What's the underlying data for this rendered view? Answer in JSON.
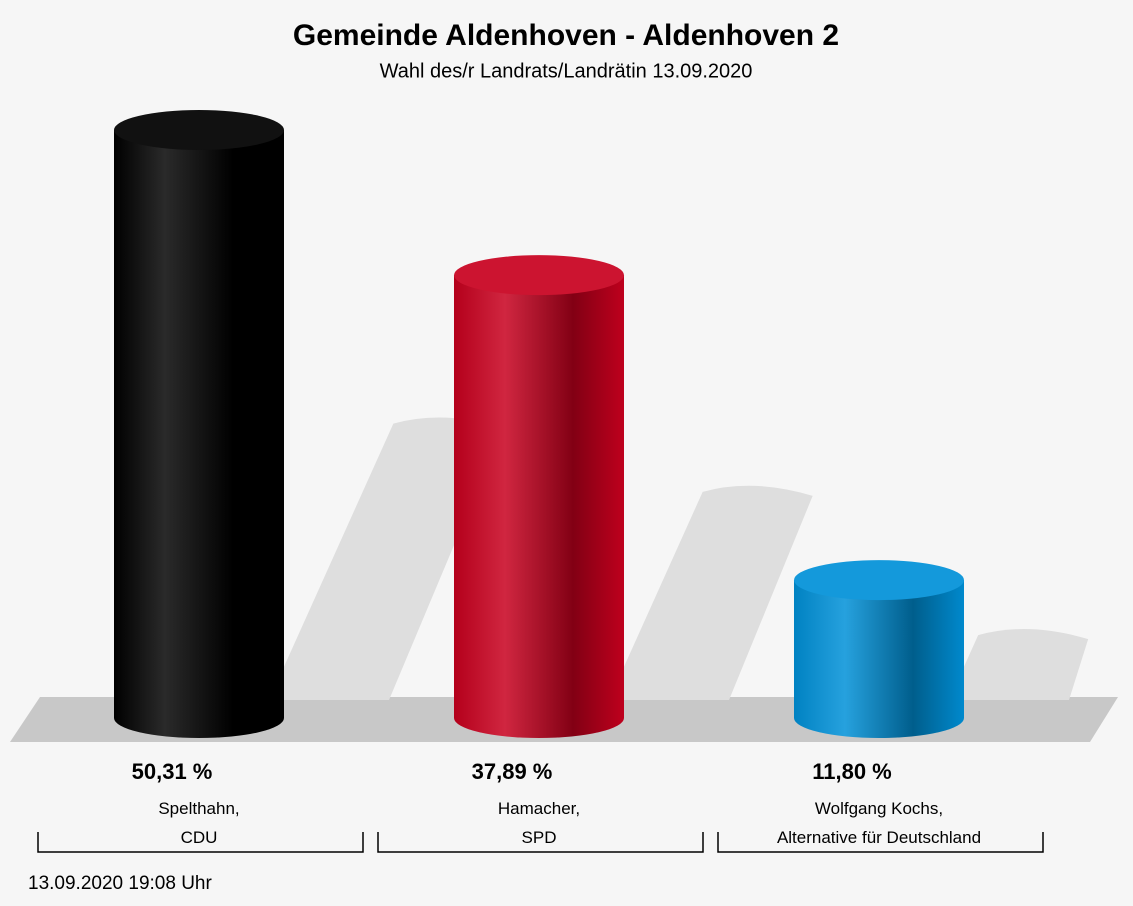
{
  "chart_data": {
    "type": "bar3d",
    "title": "Gemeinde Aldenhoven - Aldenhoven 2",
    "subtitle": "Wahl des/r Landrats/Landrätin 13.09.2020",
    "categories": [
      "Spelthahn,\nCDU",
      "Hamacher,\nSPD",
      "Wolfgang Kochs,\nAlternative für Deutschland"
    ],
    "values": [
      50.31,
      37.89,
      11.8
    ],
    "value_labels": [
      "50,31 %",
      "37,89 %",
      "11,80 %"
    ],
    "colors": [
      "#000000",
      "#c8001e",
      "#0090d8"
    ],
    "footnote": "13.09.2020 19:08 Uhr"
  }
}
